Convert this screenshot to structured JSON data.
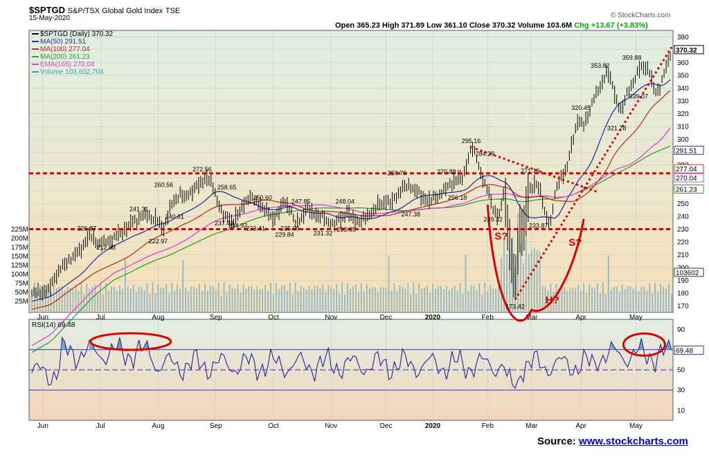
{
  "header": {
    "symbol": "$SPTGD",
    "name": "S&P/TSX Global Gold Index",
    "exchange": "TSE",
    "date": "15-May-2020",
    "brand": "© StockCharts.com",
    "ohlc": "Open 365.23  High 371.89  Low 361.10  Close 370.32  Volume 103.6M",
    "chg": "Chg +13.67 (+3.83%)"
  },
  "legend": [
    {
      "text": "$SPTGD (Daily) 370.32",
      "color": "#000000"
    },
    {
      "text": "MA(50) 291.51",
      "color": "#3030a0"
    },
    {
      "text": "MA(100) 277.04",
      "color": "#c03020"
    },
    {
      "text": "MA(200) 261.23",
      "color": "#30a030"
    },
    {
      "text": "EMA(165) 270.04",
      "color": "#e040e0"
    },
    {
      "text": "Volume 103,602,704",
      "color": "#40a0c0"
    }
  ],
  "rsi_legend": "RSI(14) 69.48",
  "source": {
    "label": "Source:",
    "link": "www.stockcharts.com"
  },
  "colors": {
    "price": "#000000",
    "ma50": "#3030a0",
    "ma100": "#c03020",
    "ma200": "#30a030",
    "ema165": "#e040e0",
    "volume": "#90b8c8",
    "annotation": "#dd0000"
  },
  "chart_data": {
    "type": "line",
    "title": "$SPTGD S&P/TSX Global Gold Index TSE",
    "x_labels": [
      "Jun",
      "Jul",
      "Aug",
      "Sep",
      "Oct",
      "Nov",
      "Dec",
      "2020",
      "Feb",
      "Mar",
      "Apr",
      "May"
    ],
    "y_ticks": [
      170,
      180,
      190,
      200,
      210,
      220,
      230,
      240,
      250,
      260,
      270,
      280,
      290,
      300,
      310,
      320,
      330,
      340,
      350,
      360,
      370,
      380
    ],
    "ylim": [
      165,
      385
    ],
    "volume_ticks": [
      "25M",
      "50M",
      "75M",
      "100M",
      "125M",
      "150M",
      "175M",
      "200M",
      "225M"
    ],
    "price": [
      [
        0,
        180
      ],
      [
        12,
        182
      ],
      [
        18,
        195
      ],
      [
        26,
        205
      ],
      [
        34,
        212
      ],
      [
        42,
        225
      ],
      [
        50,
        218
      ],
      [
        58,
        222
      ],
      [
        66,
        228
      ],
      [
        74,
        236
      ],
      [
        82,
        241
      ],
      [
        90,
        238
      ],
      [
        96,
        230
      ],
      [
        100,
        245
      ],
      [
        104,
        252
      ],
      [
        108,
        258
      ],
      [
        112,
        254
      ],
      [
        118,
        262
      ],
      [
        124,
        266
      ],
      [
        128,
        272
      ],
      [
        132,
        262
      ],
      [
        136,
        250
      ],
      [
        140,
        240
      ],
      [
        146,
        236
      ],
      [
        152,
        244
      ],
      [
        158,
        256
      ],
      [
        162,
        252
      ],
      [
        168,
        248
      ],
      [
        172,
        242
      ],
      [
        176,
        238
      ],
      [
        180,
        244
      ],
      [
        184,
        252
      ],
      [
        188,
        246
      ],
      [
        192,
        234
      ],
      [
        196,
        238
      ],
      [
        200,
        246
      ],
      [
        204,
        243
      ],
      [
        210,
        240
      ],
      [
        216,
        236
      ],
      [
        220,
        233
      ],
      [
        224,
        238
      ],
      [
        230,
        243
      ],
      [
        234,
        238
      ],
      [
        240,
        236
      ],
      [
        246,
        242
      ],
      [
        252,
        248
      ],
      [
        258,
        252
      ],
      [
        262,
        250
      ],
      [
        266,
        257
      ],
      [
        270,
        262
      ],
      [
        274,
        264
      ],
      [
        278,
        262
      ],
      [
        284,
        255
      ],
      [
        290,
        252
      ],
      [
        296,
        256
      ],
      [
        302,
        262
      ],
      [
        308,
        268
      ],
      [
        314,
        270
      ],
      [
        320,
        294
      ],
      [
        324,
        286
      ],
      [
        328,
        270
      ],
      [
        332,
        260
      ],
      [
        336,
        247
      ],
      [
        340,
        238
      ],
      [
        344,
        260
      ],
      [
        348,
        218
      ],
      [
        352,
        184
      ],
      [
        355,
        230
      ],
      [
        358,
        228
      ],
      [
        362,
        258
      ],
      [
        366,
        266
      ],
      [
        370,
        262
      ],
      [
        374,
        240
      ],
      [
        378,
        236
      ],
      [
        382,
        262
      ],
      [
        386,
        272
      ],
      [
        390,
        278
      ],
      [
        394,
        300
      ],
      [
        398,
        316
      ],
      [
        402,
        310
      ],
      [
        406,
        322
      ],
      [
        410,
        334
      ],
      [
        414,
        340
      ],
      [
        418,
        353
      ],
      [
        422,
        346
      ],
      [
        426,
        330
      ],
      [
        430,
        322
      ],
      [
        434,
        338
      ],
      [
        438,
        344
      ],
      [
        442,
        354
      ],
      [
        446,
        358
      ],
      [
        450,
        352
      ],
      [
        454,
        336
      ],
      [
        458,
        342
      ],
      [
        462,
        356
      ],
      [
        466,
        370
      ]
    ],
    "price_labels": [
      "272.56",
      "260.56",
      "258.65",
      "250.60",
      "247.85",
      "248.04",
      "241.31",
      "240.61",
      "237.42",
      "234.92",
      "233.41",
      "235.09",
      "229.84",
      "231.32",
      "233.85",
      "226.87",
      "222.97",
      "212.83",
      "259.76",
      "247.38",
      "270.88",
      "256.18",
      "295.16",
      "284.29",
      "271.16",
      "239.32",
      "233.87",
      "173.42",
      "320.45",
      "353.82",
      "359.88",
      "339.07",
      "321.78",
      "370.32"
    ],
    "value_flags": [
      "291.51",
      "277.04",
      "270.04",
      "261.23",
      "103602"
    ],
    "annotations": [
      "S?",
      "S?",
      "H?"
    ],
    "rsi": {
      "ticks": [
        10,
        30,
        50,
        70,
        90
      ],
      "last": 69.48
    }
  }
}
